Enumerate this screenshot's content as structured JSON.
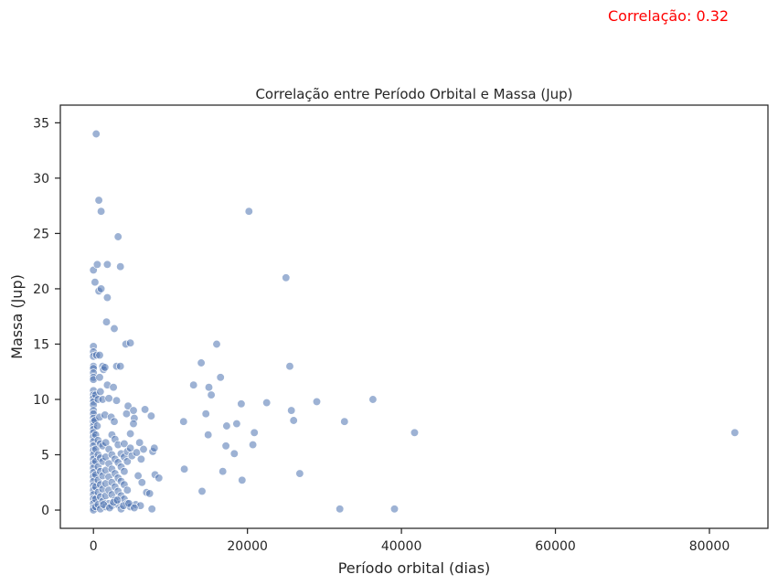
{
  "annotation": "Correlação: 0.32",
  "chart_data": {
    "type": "scatter",
    "title": "Correlação entre Período Orbital e Massa (Jup)",
    "xlabel": "Período orbital (dias)",
    "ylabel": "Massa (Jup)",
    "xlim": [
      -4300,
      87600
    ],
    "ylim": [
      -1.65,
      36.6
    ],
    "xticks": [
      0,
      20000,
      40000,
      60000,
      80000
    ],
    "yticks": [
      0,
      5,
      10,
      15,
      20,
      25,
      30,
      35
    ],
    "grid": false,
    "legend": "none",
    "colors": {
      "point_fill": "#4c72b0",
      "point_edge": "#ffffff",
      "axes": "#262626",
      "text": "#262626"
    },
    "points": [
      [
        350,
        34
      ],
      [
        700,
        28
      ],
      [
        1000,
        27
      ],
      [
        3200,
        24.7
      ],
      [
        20200,
        27
      ],
      [
        25000,
        21
      ],
      [
        0,
        21.7
      ],
      [
        500,
        22.2
      ],
      [
        1800,
        22.2
      ],
      [
        3500,
        22
      ],
      [
        200,
        20.6
      ],
      [
        700,
        19.8
      ],
      [
        1000,
        20
      ],
      [
        1800,
        19.2
      ],
      [
        1700,
        17
      ],
      [
        2700,
        16.4
      ],
      [
        0,
        14.8
      ],
      [
        0,
        14.3
      ],
      [
        0,
        13.9
      ],
      [
        400,
        14
      ],
      [
        800,
        14
      ],
      [
        4200,
        15
      ],
      [
        4800,
        15.1
      ],
      [
        16000,
        15
      ],
      [
        14000,
        13.3
      ],
      [
        25500,
        13
      ],
      [
        0,
        13
      ],
      [
        0,
        12.8
      ],
      [
        0,
        12.4
      ],
      [
        0,
        12
      ],
      [
        0,
        11.8
      ],
      [
        800,
        12
      ],
      [
        1200,
        13
      ],
      [
        3000,
        13
      ],
      [
        3500,
        13
      ],
      [
        1300,
        12.7
      ],
      [
        1500,
        12.9
      ],
      [
        13000,
        11.3
      ],
      [
        15000,
        11.1
      ],
      [
        16500,
        12
      ],
      [
        15300,
        10.4
      ],
      [
        1800,
        11.3
      ],
      [
        2600,
        11.1
      ],
      [
        0,
        10.8
      ],
      [
        0,
        10.4
      ],
      [
        0,
        10.1
      ],
      [
        0,
        9.8
      ],
      [
        0,
        9.5
      ],
      [
        300,
        10.4
      ],
      [
        600,
        10
      ],
      [
        900,
        10.7
      ],
      [
        1200,
        10
      ],
      [
        2000,
        10.1
      ],
      [
        3000,
        9.9
      ],
      [
        4500,
        9.4
      ],
      [
        5200,
        9
      ],
      [
        6700,
        9.1
      ],
      [
        0,
        9
      ],
      [
        0,
        8.7
      ],
      [
        0,
        8.3
      ],
      [
        0,
        8
      ],
      [
        0,
        7.6
      ],
      [
        0,
        7.3
      ],
      [
        200,
        8.1
      ],
      [
        500,
        7.6
      ],
      [
        800,
        8.4
      ],
      [
        1500,
        8.6
      ],
      [
        2300,
        8.4
      ],
      [
        2700,
        8
      ],
      [
        4300,
        8.7
      ],
      [
        5300,
        8.3
      ],
      [
        7500,
        8.5
      ],
      [
        11700,
        8
      ],
      [
        14600,
        8.7
      ],
      [
        17300,
        7.6
      ],
      [
        18600,
        7.8
      ],
      [
        19200,
        9.6
      ],
      [
        22500,
        9.7
      ],
      [
        25700,
        9
      ],
      [
        26000,
        8.1
      ],
      [
        29000,
        9.8
      ],
      [
        32600,
        8
      ],
      [
        36300,
        10
      ],
      [
        41700,
        7
      ],
      [
        83300,
        7
      ],
      [
        20900,
        7
      ],
      [
        20700,
        5.9
      ],
      [
        17200,
        5.8
      ],
      [
        14900,
        6.8
      ],
      [
        18300,
        5.1
      ],
      [
        16800,
        3.5
      ],
      [
        11800,
        3.7
      ],
      [
        19300,
        2.7
      ],
      [
        26800,
        3.3
      ],
      [
        14100,
        1.7
      ],
      [
        32000,
        0.1
      ],
      [
        39100,
        0.1
      ],
      [
        0,
        7
      ],
      [
        0,
        6.6
      ],
      [
        0,
        6.2
      ],
      [
        0,
        5.8
      ],
      [
        0,
        5.4
      ],
      [
        0,
        5
      ],
      [
        0,
        4.6
      ],
      [
        0,
        4.2
      ],
      [
        0,
        3.8
      ],
      [
        0,
        3.4
      ],
      [
        0,
        3
      ],
      [
        0,
        2.6
      ],
      [
        0,
        2.2
      ],
      [
        0,
        1.8
      ],
      [
        0,
        1.4
      ],
      [
        0,
        1
      ],
      [
        0,
        0.6
      ],
      [
        0,
        0.2
      ],
      [
        0,
        0
      ],
      [
        300,
        6.8
      ],
      [
        300,
        5.5
      ],
      [
        300,
        4.4
      ],
      [
        300,
        3.2
      ],
      [
        300,
        2.1
      ],
      [
        300,
        1
      ],
      [
        300,
        0.3
      ],
      [
        600,
        6.3
      ],
      [
        600,
        5
      ],
      [
        600,
        3.9
      ],
      [
        600,
        2.7
      ],
      [
        600,
        1.6
      ],
      [
        600,
        0.5
      ],
      [
        900,
        6
      ],
      [
        900,
        4.7
      ],
      [
        900,
        3.5
      ],
      [
        900,
        2.3
      ],
      [
        900,
        1.2
      ],
      [
        900,
        0.1
      ],
      [
        1200,
        5.8
      ],
      [
        1200,
        4.4
      ],
      [
        1200,
        3.1
      ],
      [
        1200,
        1.9
      ],
      [
        1200,
        0.8
      ],
      [
        1600,
        6.1
      ],
      [
        1600,
        4.8
      ],
      [
        1600,
        3.6
      ],
      [
        1600,
        2.4
      ],
      [
        1600,
        1.3
      ],
      [
        1600,
        0.3
      ],
      [
        2000,
        5.5
      ],
      [
        2000,
        4.2
      ],
      [
        2000,
        3
      ],
      [
        2000,
        1.8
      ],
      [
        2000,
        0.6
      ],
      [
        2400,
        6.8
      ],
      [
        2400,
        5
      ],
      [
        2400,
        3.7
      ],
      [
        2400,
        2.5
      ],
      [
        2400,
        1.4
      ],
      [
        2400,
        0.4
      ],
      [
        2800,
        6.4
      ],
      [
        2800,
        4.6
      ],
      [
        2800,
        3.3
      ],
      [
        2800,
        2.1
      ],
      [
        2800,
        0.9
      ],
      [
        3200,
        5.9
      ],
      [
        3200,
        4.3
      ],
      [
        3200,
        2.9
      ],
      [
        3200,
        1.7
      ],
      [
        3200,
        0.5
      ],
      [
        3600,
        5.1
      ],
      [
        3600,
        3.9
      ],
      [
        3600,
        2.6
      ],
      [
        3600,
        1.3
      ],
      [
        3600,
        0.1
      ],
      [
        4000,
        6
      ],
      [
        4000,
        4.8
      ],
      [
        4000,
        3.5
      ],
      [
        4000,
        2.3
      ],
      [
        4000,
        1
      ],
      [
        4400,
        5.3
      ],
      [
        4400,
        4.4
      ],
      [
        4400,
        1.8
      ],
      [
        4400,
        0.6
      ],
      [
        4800,
        6.9
      ],
      [
        4800,
        5.6
      ],
      [
        4800,
        0.3
      ],
      [
        5000,
        4.9
      ],
      [
        5200,
        7.8
      ],
      [
        5600,
        5.2
      ],
      [
        5800,
        3.1
      ],
      [
        6000,
        6.1
      ],
      [
        6200,
        4.6
      ],
      [
        6300,
        2.5
      ],
      [
        6500,
        5.5
      ],
      [
        6900,
        1.6
      ],
      [
        7300,
        1.5
      ],
      [
        7700,
        5.3
      ],
      [
        7900,
        5.6
      ],
      [
        8000,
        3.2
      ],
      [
        8500,
        2.9
      ],
      [
        5500,
        0.5
      ],
      [
        6100,
        0.4
      ],
      [
        7600,
        0.1
      ],
      [
        1300,
        0.5
      ],
      [
        2100,
        0.2
      ],
      [
        2600,
        0.7
      ],
      [
        3100,
        0.9
      ],
      [
        3900,
        0.4
      ],
      [
        4600,
        0.6
      ],
      [
        5300,
        0.2
      ]
    ]
  }
}
